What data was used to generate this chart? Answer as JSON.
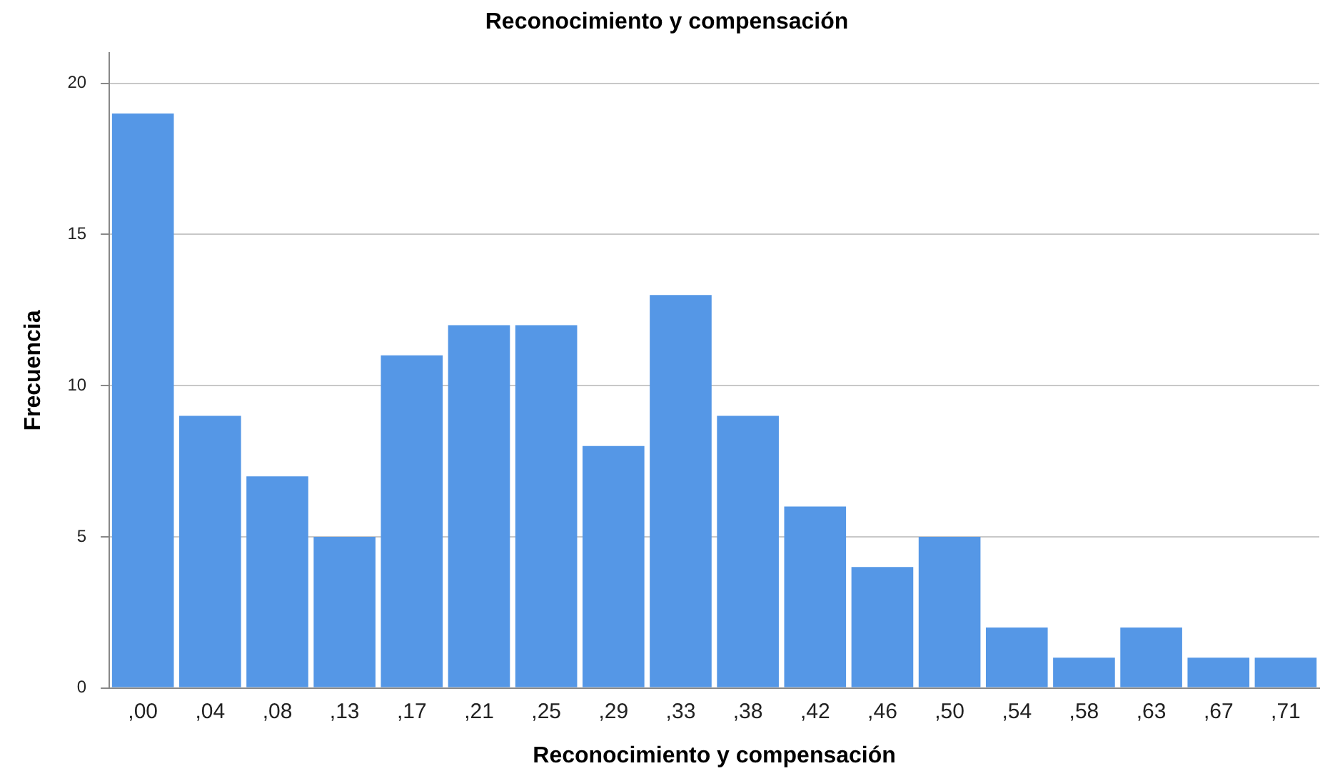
{
  "chart_data": {
    "type": "bar",
    "title": "Reconocimiento y compensación",
    "xlabel": "Reconocimiento y compensación",
    "ylabel": "Frecuencia",
    "categories": [
      ",00",
      ",04",
      ",08",
      ",13",
      ",17",
      ",21",
      ",25",
      ",29",
      ",33",
      ",38",
      ",42",
      ",46",
      ",50",
      ",54",
      ",58",
      ",63",
      ",67",
      ",71"
    ],
    "values": [
      19,
      9,
      7,
      5,
      11,
      12,
      12,
      8,
      13,
      9,
      6,
      4,
      5,
      2,
      1,
      2,
      1,
      1
    ],
    "color": "#5597e6",
    "ylim": [
      0,
      21
    ],
    "yticks": [
      0,
      5,
      10,
      15,
      20
    ],
    "grid": "y"
  }
}
